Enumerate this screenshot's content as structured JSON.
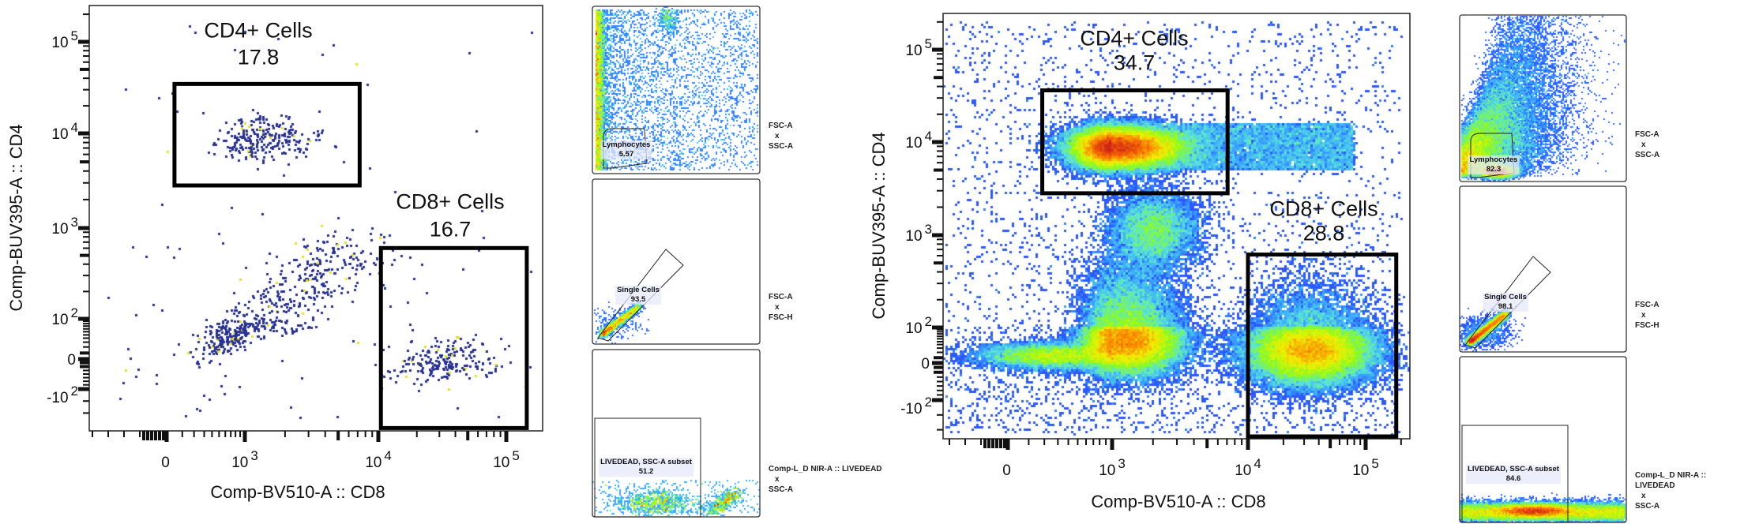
{
  "chart_data": [
    {
      "type": "scatter",
      "id": "left",
      "xlabel": "Comp-BV510-A :: CD8",
      "ylabel": "Comp-BUV395-A :: CD4",
      "x_scale": "biexponential",
      "y_scale": "biexponential",
      "x_ticks": [
        {
          "base": "0",
          "exp": ""
        },
        {
          "base": "10",
          "exp": "3"
        },
        {
          "base": "10",
          "exp": "4"
        },
        {
          "base": "10",
          "exp": "5"
        }
      ],
      "y_ticks": [
        {
          "base": "-10",
          "exp": "2"
        },
        {
          "base": "0",
          "exp": ""
        },
        {
          "base": "10",
          "exp": "2"
        },
        {
          "base": "10",
          "exp": "3"
        },
        {
          "base": "10",
          "exp": "4"
        },
        {
          "base": "10",
          "exp": "5"
        }
      ],
      "rendering": "dot",
      "colors": {
        "dot": "#27318f",
        "hot": "#e8e020",
        "gate": "#000000"
      },
      "gates": [
        {
          "name": "CD4+ Cells",
          "value": "17.8",
          "x_decades": [
            0.1,
            1.86
          ],
          "y_decades": [
            2.45,
            3.54
          ]
        },
        {
          "name": "CD8+ Cells",
          "value": "16.7",
          "x_decades": [
            2.02,
            3.16
          ],
          "y_decades": [
            -2.3,
            1.78
          ]
        }
      ],
      "populations": [
        {
          "cx": 1.1,
          "cy": 2.94,
          "sx": 0.22,
          "sy": 0.12,
          "n": 260
        },
        {
          "line": [
            [
              0.55,
              0.3
            ],
            [
              1.85,
              1.85
            ]
          ],
          "spread": 0.18,
          "n": 560
        },
        {
          "cx": 2.48,
          "cy": -0.05,
          "sx": 0.22,
          "sy": 0.35,
          "n": 210
        },
        {
          "uniform": [
            [
              -0.8,
              3.2
            ],
            [
              -2.0,
              4.2
            ]
          ],
          "n": 120
        }
      ]
    },
    {
      "type": "scatter",
      "id": "right",
      "xlabel": "Comp-BV510-A :: CD8",
      "ylabel": "Comp-BUV395-A :: CD4",
      "x_scale": "biexponential",
      "y_scale": "biexponential",
      "x_ticks": [
        {
          "base": "0",
          "exp": ""
        },
        {
          "base": "10",
          "exp": "3"
        },
        {
          "base": "10",
          "exp": "4"
        },
        {
          "base": "10",
          "exp": "5"
        }
      ],
      "y_ticks": [
        {
          "base": "-10",
          "exp": "2"
        },
        {
          "base": "0",
          "exp": ""
        },
        {
          "base": "10",
          "exp": "2"
        },
        {
          "base": "10",
          "exp": "3"
        },
        {
          "base": "10",
          "exp": "4"
        },
        {
          "base": "10",
          "exp": "5"
        }
      ],
      "rendering": "pseudocolor-density",
      "colors": {
        "gate": "#000000"
      },
      "gates": [
        {
          "name": "CD4+ Cells",
          "value": "34.7",
          "x_decades": [
            0.33,
            1.85
          ],
          "y_decades": [
            2.45,
            3.56
          ]
        },
        {
          "name": "CD8+ Cells",
          "value": "28.8",
          "x_decades": [
            2.0,
            3.26
          ],
          "y_decades": [
            -2.0,
            1.79
          ]
        }
      ],
      "populations": [
        {
          "cx": 1.06,
          "cy": 2.94,
          "sx": 0.22,
          "sy": 0.11,
          "n": 42000
        },
        {
          "cx": 1.31,
          "cy": 2.05,
          "sx": 0.16,
          "sy": 0.2,
          "n": 7000
        },
        {
          "cx": 1.12,
          "cy": 0.65,
          "sx": 0.19,
          "sy": 0.45,
          "n": 36000
        },
        {
          "cx": 0.45,
          "cy": 0.2,
          "sx": 0.35,
          "sy": 0.18,
          "n": 8000
        },
        {
          "cx": 2.53,
          "cy": 0.35,
          "sx": 0.26,
          "sy": 0.45,
          "n": 36000
        },
        {
          "uniform": [
            [
              1.4,
              2.9
            ],
            [
              2.7,
              3.2
            ]
          ],
          "n": 7000
        },
        {
          "uniform": [
            [
              -0.6,
              3.3
            ],
            [
              -1.9,
              4.3
            ]
          ],
          "n": 3500
        }
      ]
    }
  ],
  "gating_panels": {
    "left": [
      {
        "gate": "Lymphocytes",
        "value": "5.57",
        "x_axis": "FSC-A",
        "sep": "x",
        "y_axis": "SSC-A"
      },
      {
        "gate": "Single Cells",
        "value": "93.5",
        "x_axis": "FSC-A",
        "sep": "x",
        "y_axis": "FSC-H"
      },
      {
        "gate": "LIVEDEAD, SSC-A subset",
        "value": "51.2",
        "x_axis": "Comp-L_D NIR-A :: LIVEDEAD",
        "sep": "x",
        "y_axis": "SSC-A"
      }
    ],
    "right": [
      {
        "gate": "Lymphocytes",
        "value": "82.3",
        "x_axis": "FSC-A",
        "sep": "x",
        "y_axis": "SSC-A"
      },
      {
        "gate": "Single Cells",
        "value": "98.1",
        "x_axis": "FSC-A",
        "sep": "x",
        "y_axis": "FSC-H"
      },
      {
        "gate": "LIVEDEAD, SSC-A subset",
        "value": "84.6",
        "x_axis": "Comp-L_D NIR-A :: LIVEDEAD",
        "sep": "x",
        "y_axis": "SSC-A"
      }
    ]
  }
}
